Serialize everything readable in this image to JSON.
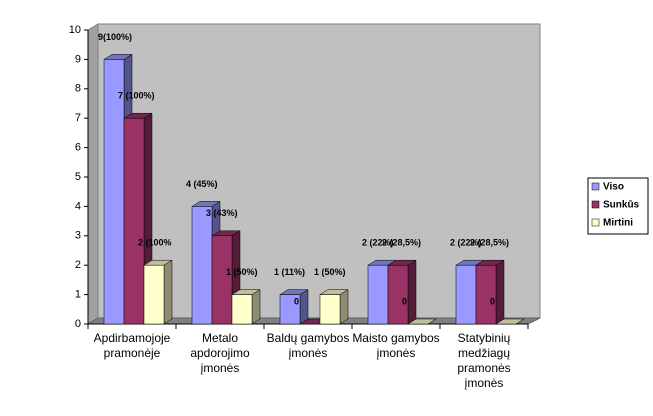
{
  "chart_data": {
    "type": "bar3d",
    "categories": [
      "Apdirbamojoje pramonėje",
      "Metalo apdorojimo įmonės",
      "Baldų gamybos įmonės",
      "Maisto gamybos įmonės",
      "Statybinių medžiagų pramonės įmonės"
    ],
    "series": [
      {
        "name": "Viso",
        "color": "#9999ff",
        "values": [
          9,
          4,
          1,
          2,
          2
        ],
        "value_labels": [
          "9(100%)",
          "4 (45%)",
          "1 (11%)",
          "2 (22%)",
          "2 (22%)"
        ]
      },
      {
        "name": "Sunkūs",
        "color": "#993366",
        "values": [
          7,
          3,
          0,
          2,
          2
        ],
        "value_labels": [
          "7 (100%)",
          "3 (43%)",
          "0",
          "2 (28,5%)",
          "2 (28,5%)"
        ]
      },
      {
        "name": "Mirtini",
        "color": "#ffffcc",
        "values": [
          2,
          1,
          1,
          0,
          0
        ],
        "value_labels": [
          "2 (100%",
          "1 (50%)",
          "1 (50%)",
          "0",
          "0"
        ]
      }
    ],
    "ylim": [
      0,
      10
    ],
    "yticks": [
      0,
      1,
      2,
      3,
      4,
      5,
      6,
      7,
      8,
      9,
      10
    ],
    "grid": false,
    "legend": "right"
  }
}
